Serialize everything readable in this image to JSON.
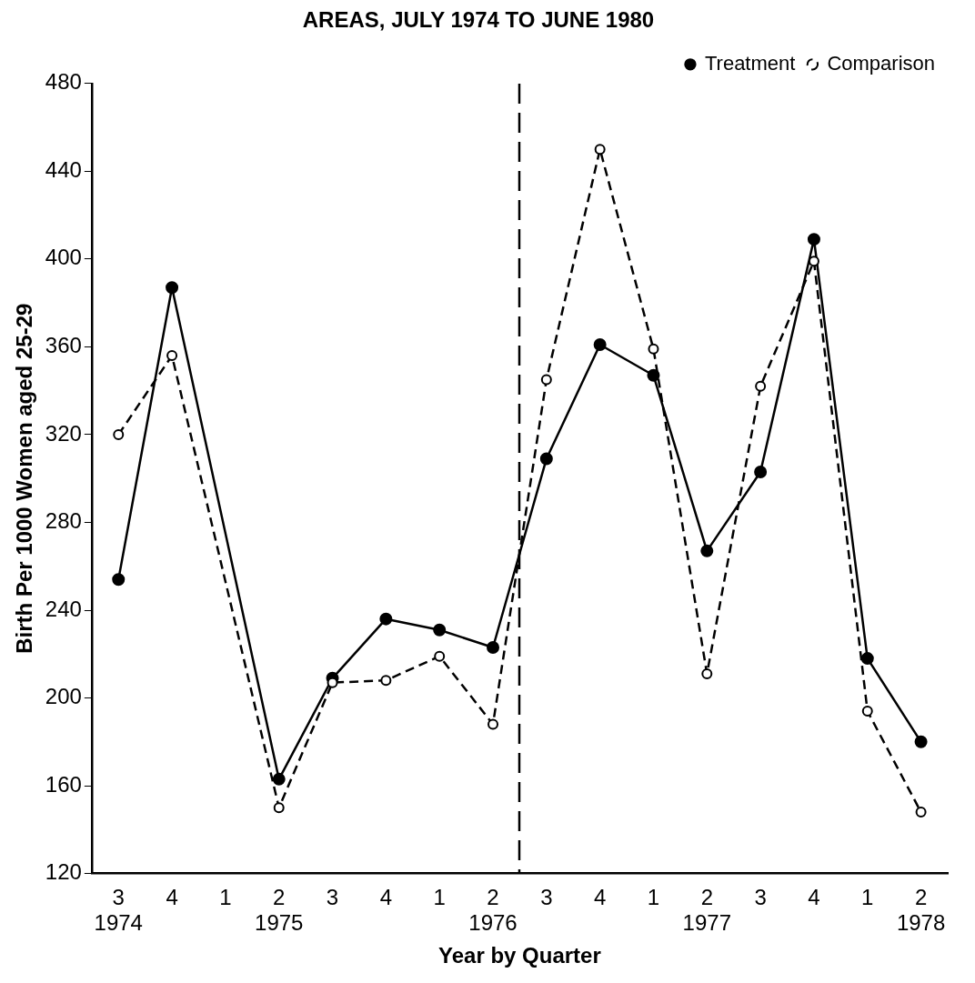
{
  "chart_data": {
    "type": "line",
    "title": "AREAS, JULY 1974 TO JUNE 1980",
    "xlabel": "Year by Quarter",
    "ylabel": "Birth Per 1000 Women aged 25-29",
    "categories": [
      "3\n1974",
      "4",
      "1",
      "2\n1975",
      "3",
      "4",
      "1",
      "2\n1976",
      "3",
      "4",
      "1",
      "2\n1977",
      "3",
      "4",
      "1",
      "2\n1978"
    ],
    "series": [
      {
        "name": "Treatment",
        "color": "#000000",
        "line_style": "solid",
        "values": [
          254,
          387,
          null,
          163,
          209,
          236,
          231,
          223,
          309,
          361,
          347,
          267,
          303,
          409,
          218,
          180
        ]
      },
      {
        "name": "Comparison",
        "color": "#000000",
        "line_style": "dashed",
        "values": [
          320,
          356,
          null,
          150,
          207,
          208,
          219,
          188,
          345,
          450,
          359,
          211,
          342,
          399,
          194,
          148
        ]
      }
    ],
    "ylim": [
      120,
      480
    ],
    "yticks": [
      120,
      160,
      200,
      240,
      280,
      320,
      360,
      400,
      440,
      480
    ],
    "marker": "circle",
    "grid": false,
    "legend": "top right"
  }
}
